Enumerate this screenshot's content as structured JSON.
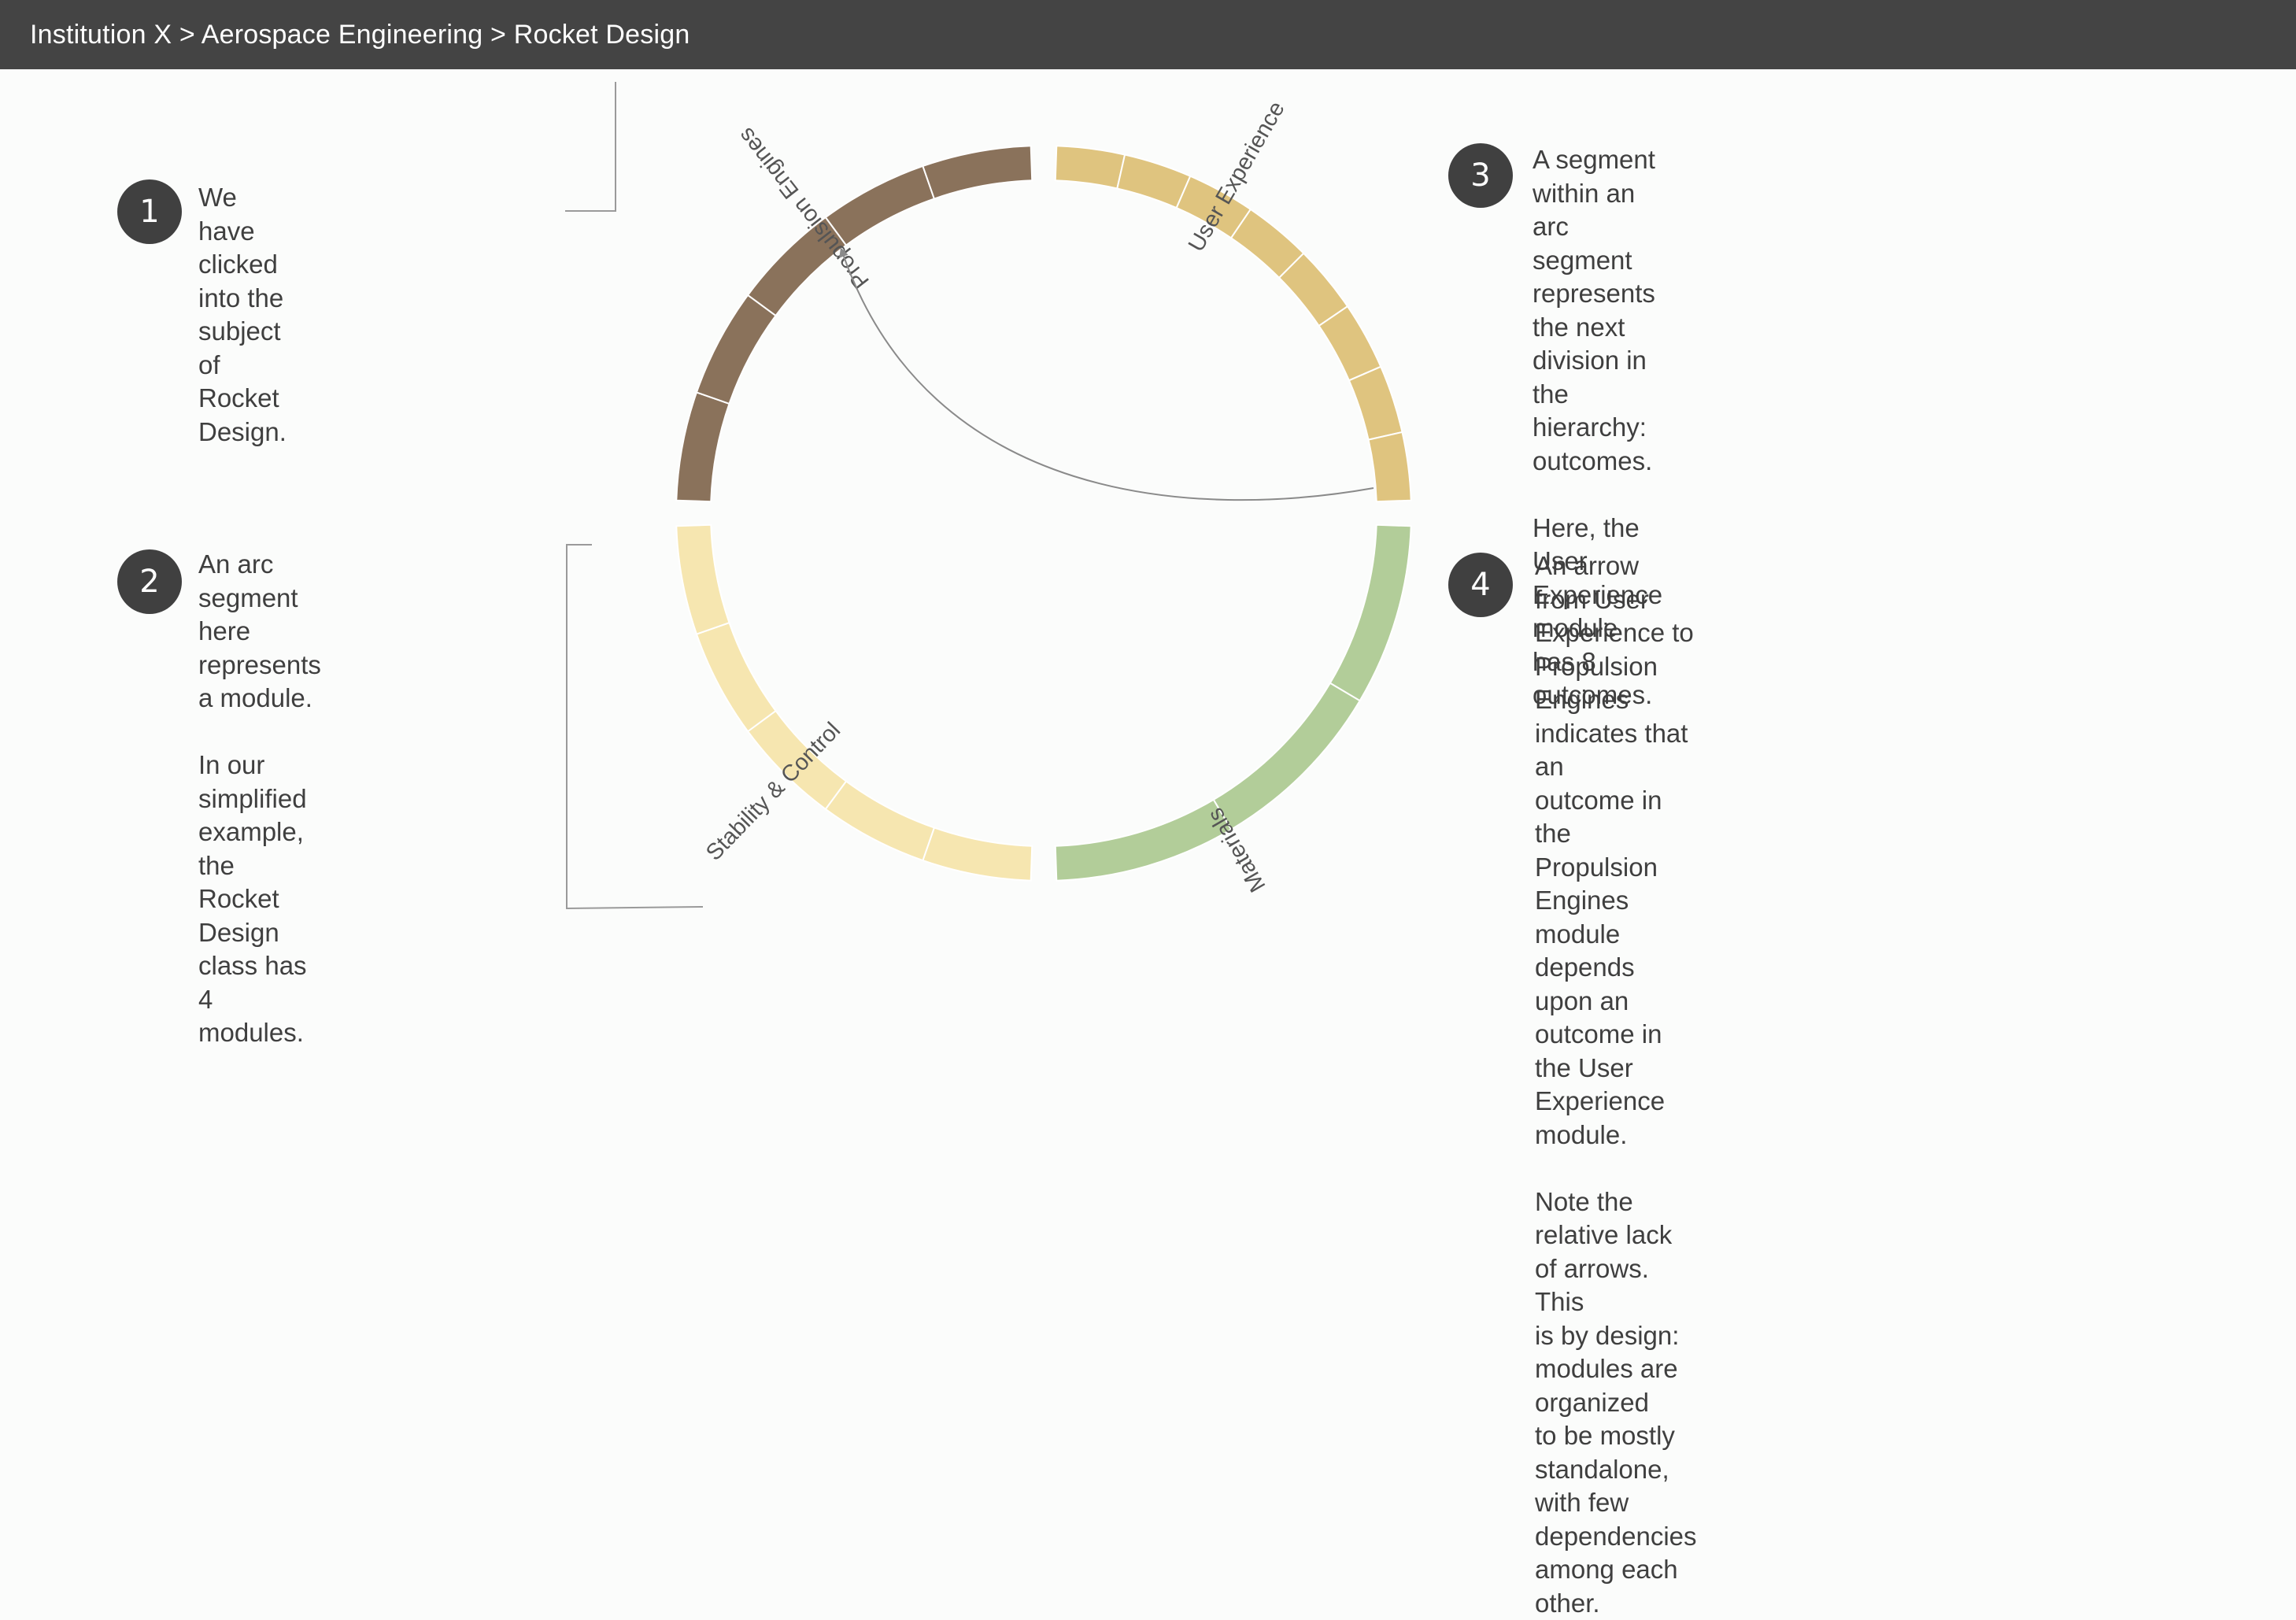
{
  "header": {
    "breadcrumb": "Institution X > Aerospace Engineering > Rocket Design"
  },
  "callouts": [
    {
      "number": "1",
      "text": "We have clicked into the\nsubject of Rocket Design."
    },
    {
      "number": "2",
      "text": "An arc segment here\nrepresents a module.\n\nIn our simplified example,\nthe Rocket Design class has\n4 modules."
    },
    {
      "number": "3",
      "text": "A segment within an arc\nsegment represents the next\ndivision in the hierarchy:\noutcomes.\n\nHere, the User Experience\nmodule has 8 outcomes."
    },
    {
      "number": "4",
      "text": "An arrow from User Experience to\nPropulsion Engines indicates that an\noutcome in the Propulsion Engines\nmodule depends upon an outcome in\nthe User Experience module.\n\nNote the relative lack of arrows. This\nis by design: modules are organized\nto be mostly standalone, with few\ndependencies among each other."
    }
  ],
  "modules": [
    {
      "name": "User Experience",
      "outcomes": 8,
      "color": "#dfc47f"
    },
    {
      "name": "Materials",
      "outcomes": 3,
      "color": "#b2cd99"
    },
    {
      "name": "Stability & Control",
      "outcomes": 5,
      "color": "#f6e6b0"
    },
    {
      "name": "Propulsion Engines",
      "outcomes": 5,
      "color": "#8a725b"
    }
  ],
  "dependencies": [
    {
      "from": "User Experience",
      "to": "Propulsion Engines"
    }
  ]
}
